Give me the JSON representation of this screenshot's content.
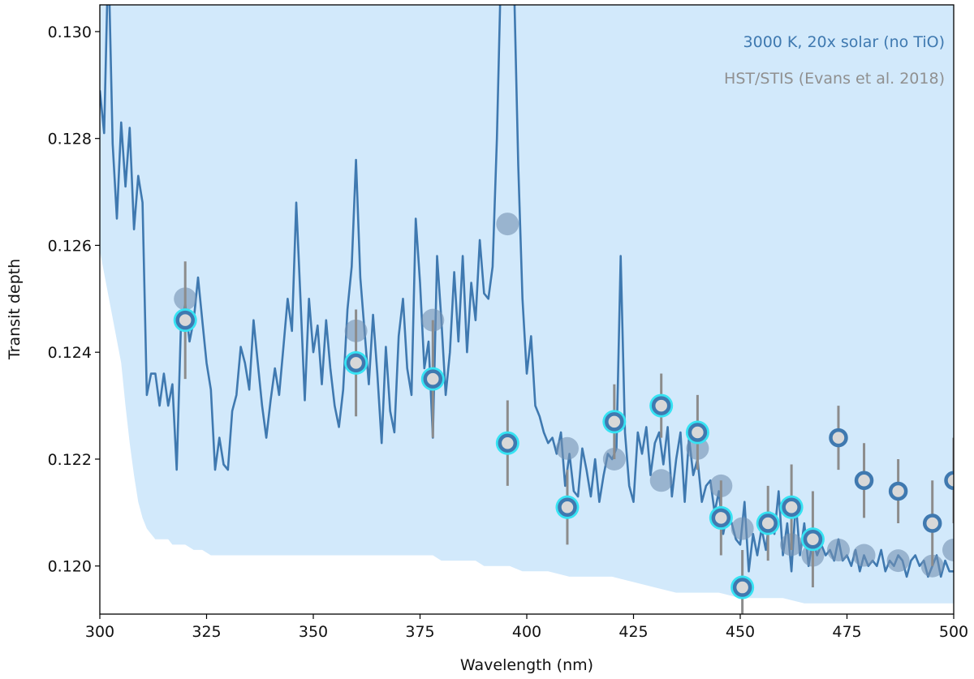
{
  "chart_data": {
    "type": "scatter",
    "xlabel": "Wavelength (nm)",
    "ylabel": "Transit depth",
    "xlim": [
      300,
      500
    ],
    "ylim": [
      0.1191,
      0.1305
    ],
    "x_ticks": [
      300,
      325,
      350,
      375,
      400,
      425,
      450,
      475,
      500
    ],
    "x_tick_labels": [
      "300",
      "325",
      "350",
      "375",
      "400",
      "425",
      "450",
      "475",
      "500"
    ],
    "y_ticks": [
      0.12,
      0.122,
      0.124,
      0.126,
      0.128,
      0.13
    ],
    "y_tick_labels": [
      "0.120",
      "0.122",
      "0.124",
      "0.126",
      "0.128",
      "0.130"
    ],
    "grid": false,
    "legend": {
      "placement": "top-right",
      "entries": [
        {
          "label": "3000 K, 20x solar (no TiO)",
          "color": "#3f79b0"
        },
        {
          "label": "HST/STIS (Evans et al. 2018)",
          "color": "#909090"
        }
      ]
    },
    "colors": {
      "model_line": "#3f79b0",
      "model_band": "#d2e9fb",
      "binned_model": "#7391b2",
      "errorbar": "#8c8c8c",
      "highlight_ring": "#36e3f3",
      "point_fill": "#d8d8d8",
      "point_ring": "#3f79b0"
    },
    "model_line": {
      "name": "3000 K, 20x solar (no TiO)",
      "x": [
        300,
        301,
        302,
        303,
        304,
        305,
        306,
        307,
        308,
        309,
        310,
        311,
        312,
        313,
        314,
        315,
        316,
        317,
        318,
        319,
        320,
        321,
        322,
        323,
        324,
        325,
        326,
        327,
        328,
        329,
        330,
        331,
        332,
        333,
        334,
        335,
        336,
        337,
        338,
        339,
        340,
        341,
        342,
        343,
        344,
        345,
        346,
        347,
        348,
        349,
        350,
        351,
        352,
        353,
        354,
        355,
        356,
        357,
        358,
        359,
        360,
        361,
        362,
        363,
        364,
        365,
        366,
        367,
        368,
        369,
        370,
        371,
        372,
        373,
        374,
        375,
        376,
        377,
        378,
        379,
        380,
        381,
        382,
        383,
        384,
        385,
        386,
        387,
        388,
        389,
        390,
        391,
        392,
        393,
        394,
        395,
        396,
        397,
        398,
        399,
        400,
        401,
        402,
        403,
        404,
        405,
        406,
        407,
        408,
        409,
        410,
        411,
        412,
        413,
        414,
        415,
        416,
        417,
        418,
        419,
        420,
        421,
        422,
        423,
        424,
        425,
        426,
        427,
        428,
        429,
        430,
        431,
        432,
        433,
        434,
        435,
        436,
        437,
        438,
        439,
        440,
        441,
        442,
        443,
        444,
        445,
        446,
        447,
        448,
        449,
        450,
        451,
        452,
        453,
        454,
        455,
        456,
        457,
        458,
        459,
        460,
        461,
        462,
        463,
        464,
        465,
        466,
        467,
        468,
        469,
        470,
        471,
        472,
        473,
        474,
        475,
        476,
        477,
        478,
        479,
        480,
        481,
        482,
        483,
        484,
        485,
        486,
        487,
        488,
        489,
        490,
        491,
        492,
        493,
        494,
        495,
        496,
        497,
        498,
        499,
        500
      ],
      "y": [
        0.1289,
        0.1281,
        0.1315,
        0.1279,
        0.1265,
        0.1283,
        0.1271,
        0.1282,
        0.1263,
        0.1273,
        0.1268,
        0.1232,
        0.1236,
        0.1236,
        0.123,
        0.1236,
        0.123,
        0.1234,
        0.1218,
        0.1245,
        0.1249,
        0.1242,
        0.1246,
        0.1254,
        0.1246,
        0.1238,
        0.1233,
        0.1218,
        0.1224,
        0.1219,
        0.1218,
        0.1229,
        0.1232,
        0.1241,
        0.1238,
        0.1233,
        0.1246,
        0.1238,
        0.123,
        0.1224,
        0.1231,
        0.1237,
        0.1232,
        0.1241,
        0.125,
        0.1244,
        0.1268,
        0.125,
        0.1231,
        0.125,
        0.124,
        0.1245,
        0.1234,
        0.1246,
        0.1237,
        0.123,
        0.1226,
        0.1233,
        0.1248,
        0.1256,
        0.1276,
        0.1254,
        0.1244,
        0.1234,
        0.1247,
        0.1236,
        0.1223,
        0.1241,
        0.1229,
        0.1225,
        0.1243,
        0.125,
        0.1237,
        0.1232,
        0.1265,
        0.1253,
        0.1237,
        0.1242,
        0.1224,
        0.1258,
        0.1246,
        0.1232,
        0.124,
        0.1255,
        0.1242,
        0.1258,
        0.124,
        0.1253,
        0.1246,
        0.1261,
        0.1251,
        0.125,
        0.1256,
        0.128,
        0.1313,
        0.131,
        0.1313,
        0.131,
        0.1275,
        0.125,
        0.1236,
        0.1243,
        0.123,
        0.1228,
        0.1225,
        0.1223,
        0.1224,
        0.1221,
        0.1225,
        0.1215,
        0.1221,
        0.1214,
        0.1213,
        0.1222,
        0.1218,
        0.1213,
        0.122,
        0.1212,
        0.1217,
        0.1221,
        0.122,
        0.1222,
        0.1258,
        0.1225,
        0.1215,
        0.1212,
        0.1225,
        0.1221,
        0.1226,
        0.1217,
        0.1223,
        0.1225,
        0.1219,
        0.1226,
        0.1213,
        0.122,
        0.1225,
        0.1212,
        0.1224,
        0.1217,
        0.122,
        0.1212,
        0.1215,
        0.1216,
        0.121,
        0.1214,
        0.1206,
        0.121,
        0.1208,
        0.1205,
        0.1204,
        0.1212,
        0.1199,
        0.1206,
        0.1202,
        0.1207,
        0.1203,
        0.121,
        0.1206,
        0.1214,
        0.1202,
        0.1208,
        0.1199,
        0.1212,
        0.1202,
        0.1208,
        0.12,
        0.1205,
        0.1202,
        0.1204,
        0.1202,
        0.1203,
        0.1201,
        0.1205,
        0.1201,
        0.1202,
        0.12,
        0.1203,
        0.1199,
        0.1202,
        0.12,
        0.1201,
        0.12,
        0.1203,
        0.1199,
        0.1201,
        0.12,
        0.1202,
        0.1201,
        0.1198,
        0.1201,
        0.1202,
        0.12,
        0.1201,
        0.1198,
        0.12,
        0.1202,
        0.1198,
        0.1201,
        0.1199,
        0.1199
      ]
    },
    "model_band": {
      "x": [
        300,
        305,
        306,
        307,
        308,
        309,
        310,
        311,
        312,
        313,
        314,
        315,
        316,
        317,
        318,
        319,
        320,
        322,
        324,
        326,
        328,
        330,
        334,
        338,
        342,
        346,
        350,
        354,
        356,
        358,
        360,
        362,
        364,
        366,
        368,
        370,
        372,
        374,
        376,
        378,
        380,
        382,
        384,
        386,
        388,
        390,
        393,
        396,
        399,
        402,
        405,
        410,
        415,
        420,
        425,
        430,
        435,
        440,
        445,
        450,
        455,
        460,
        465,
        470,
        475,
        480,
        485,
        490,
        495,
        500
      ],
      "lower": [
        0.1259,
        0.1238,
        0.123,
        0.1223,
        0.1217,
        0.1212,
        0.1209,
        0.1207,
        0.1206,
        0.1205,
        0.1205,
        0.1205,
        0.1205,
        0.1204,
        0.1204,
        0.1204,
        0.1204,
        0.1203,
        0.1203,
        0.1202,
        0.1202,
        0.1202,
        0.1202,
        0.1202,
        0.1202,
        0.1202,
        0.1202,
        0.1202,
        0.1202,
        0.1202,
        0.1202,
        0.1202,
        0.1202,
        0.1202,
        0.1202,
        0.1202,
        0.1202,
        0.1202,
        0.1202,
        0.1202,
        0.1201,
        0.1201,
        0.1201,
        0.1201,
        0.1201,
        0.12,
        0.12,
        0.12,
        0.1199,
        0.1199,
        0.1199,
        0.1198,
        0.1198,
        0.1198,
        0.1197,
        0.1196,
        0.1195,
        0.1195,
        0.1195,
        0.1194,
        0.1194,
        0.1194,
        0.1193,
        0.1193,
        0.1193,
        0.1193,
        0.1193,
        0.1193,
        0.1193,
        0.1193
      ]
    },
    "binned_model": {
      "x": [
        320,
        360,
        378,
        395.5,
        409.5,
        420.5,
        431.5,
        440,
        445.5,
        450.5,
        456.5,
        462,
        467,
        473,
        479,
        487,
        495,
        500
      ],
      "y": [
        0.125,
        0.1244,
        0.1246,
        0.1264,
        0.1222,
        0.122,
        0.1216,
        0.1222,
        0.1215,
        0.1207,
        0.1208,
        0.1204,
        0.1202,
        0.1203,
        0.1202,
        0.1201,
        0.12,
        0.1203
      ]
    },
    "observations": {
      "x": [
        320,
        360,
        378,
        395.5,
        409.5,
        420.5,
        431.5,
        440,
        445.5,
        450.5,
        456.5,
        462,
        467,
        473,
        479,
        487,
        495,
        500
      ],
      "y": [
        0.1246,
        0.1238,
        0.1235,
        0.1223,
        0.1211,
        0.1227,
        0.123,
        0.1225,
        0.1209,
        0.1196,
        0.1208,
        0.1211,
        0.1205,
        0.1224,
        0.1216,
        0.1214,
        0.1208,
        0.1216
      ],
      "err": [
        0.0011,
        0.001,
        0.0011,
        0.0008,
        0.0007,
        0.0007,
        0.0006,
        0.0007,
        0.0007,
        0.0007,
        0.0007,
        0.0008,
        0.0009,
        0.0006,
        0.0007,
        0.0006,
        0.0008,
        0.0008
      ],
      "highlighted": [
        true,
        true,
        true,
        true,
        true,
        true,
        true,
        true,
        true,
        true,
        true,
        true,
        true,
        false,
        false,
        false,
        false,
        false
      ]
    }
  }
}
